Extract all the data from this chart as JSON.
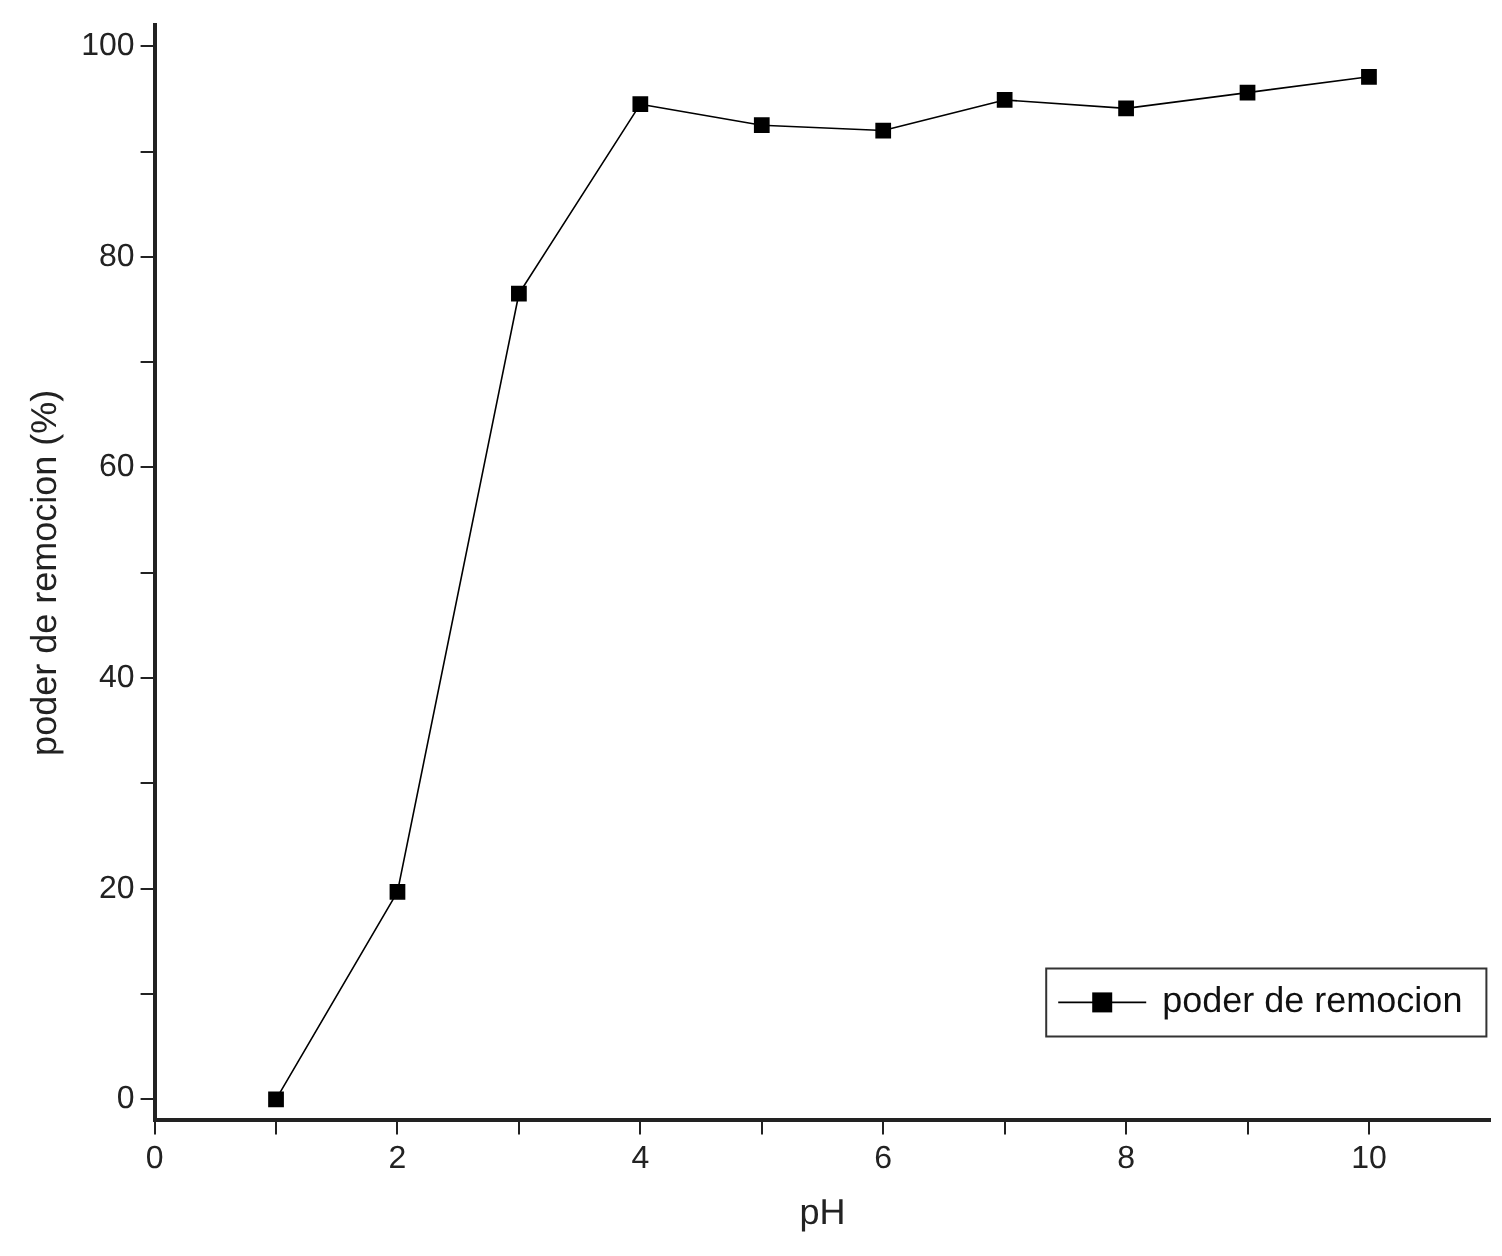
{
  "chart_data": {
    "type": "line",
    "xlabel": "pH",
    "ylabel": "poder de remocion (%)",
    "x": [
      1,
      2,
      3,
      4,
      5,
      6,
      7,
      8,
      9,
      10
    ],
    "series": [
      {
        "name": "poder de remocion",
        "color": "#000000",
        "values": [
          0,
          19.7,
          76.5,
          94.5,
          92.5,
          92.0,
          94.9,
          94.1,
          95.6,
          97.1
        ]
      }
    ],
    "xlim": [
      0,
      11
    ],
    "xticks": [
      0,
      {
        "value": 1,
        "label": null
      },
      2,
      {
        "value": 3,
        "label": null
      },
      4,
      {
        "value": 5,
        "label": null
      },
      6,
      {
        "value": 7,
        "label": null
      },
      8,
      {
        "value": 9,
        "label": null
      },
      10
    ],
    "ylim": [
      -2,
      102
    ],
    "yticks": [
      0,
      {
        "value": 10,
        "label": null
      },
      20,
      {
        "value": 30,
        "label": null
      },
      40,
      {
        "value": 50,
        "label": null
      },
      60,
      {
        "value": 70,
        "label": null
      },
      80,
      {
        "value": 90,
        "label": null
      },
      100
    ],
    "grid": false,
    "legend": "bottom right",
    "marker": "square",
    "line_style": "solid"
  }
}
